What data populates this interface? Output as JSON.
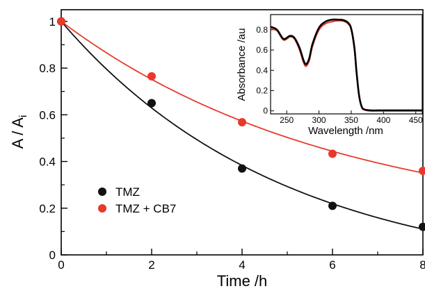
{
  "chart_data": [
    {
      "type": "scatter",
      "xlabel": "Time /h",
      "ylabel_main": "A / A",
      "ylabel_sub": "i",
      "xlim": [
        0,
        8
      ],
      "ylim": [
        0,
        1.05
      ],
      "xticks": [
        0,
        2,
        4,
        6,
        8
      ],
      "yticks": [
        0,
        0.2,
        0.4,
        0.6,
        0.8,
        1
      ],
      "xtick_labels": [
        "0",
        "2",
        "4",
        "6",
        "8"
      ],
      "ytick_labels": [
        "0",
        "0.2",
        "0.4",
        "0.6",
        "0.8",
        "1"
      ],
      "legend_position": "bottom-left",
      "series": [
        {
          "name": "TMZ",
          "color": "#111111",
          "x": [
            0,
            2,
            4,
            6,
            8
          ],
          "y": [
            1.0,
            0.65,
            0.37,
            0.21,
            0.12
          ],
          "fit": "exponential-decay"
        },
        {
          "name": "TMZ + CB7",
          "color": "#e8392b",
          "x": [
            0,
            2,
            4,
            6,
            8
          ],
          "y": [
            1.0,
            0.765,
            0.568,
            0.433,
            0.36
          ],
          "fit": "exponential-decay"
        }
      ]
    },
    {
      "type": "line",
      "position": "top-right inset",
      "xlabel": "Wavelength /nm",
      "ylabel": "Absorbance /au",
      "xlim": [
        225,
        460
      ],
      "ylim": [
        -0.03,
        0.95
      ],
      "xticks": [
        250,
        300,
        350,
        400,
        450
      ],
      "yticks": [
        0,
        0.2,
        0.4,
        0.6,
        0.8
      ],
      "xtick_labels": [
        "250",
        "300",
        "350",
        "400",
        "450"
      ],
      "ytick_labels": [
        "0",
        "0.2",
        "0.4",
        "0.6",
        "0.8"
      ],
      "series": [
        {
          "color": "#e8392b",
          "x": [
            225,
            235,
            245,
            255,
            262,
            270,
            276,
            280,
            285,
            290,
            300,
            310,
            320,
            330,
            338,
            345,
            350,
            355,
            358,
            362,
            366,
            370,
            380,
            400,
            430,
            460
          ],
          "y": [
            0.81,
            0.79,
            0.7,
            0.73,
            0.71,
            0.6,
            0.48,
            0.44,
            0.5,
            0.64,
            0.8,
            0.86,
            0.88,
            0.89,
            0.885,
            0.86,
            0.8,
            0.6,
            0.38,
            0.15,
            0.04,
            0.01,
            0.0,
            0.0,
            0.0,
            0.0
          ]
        },
        {
          "color": "#000000",
          "x": [
            225,
            235,
            245,
            255,
            262,
            270,
            276,
            280,
            285,
            290,
            300,
            310,
            320,
            330,
            338,
            345,
            350,
            355,
            358,
            362,
            366,
            370,
            380,
            400,
            430,
            460
          ],
          "y": [
            0.83,
            0.8,
            0.71,
            0.74,
            0.72,
            0.62,
            0.5,
            0.46,
            0.52,
            0.66,
            0.82,
            0.88,
            0.9,
            0.9,
            0.895,
            0.87,
            0.81,
            0.62,
            0.4,
            0.16,
            0.045,
            0.015,
            0.005,
            0.005,
            0.005,
            0.005
          ]
        }
      ]
    }
  ]
}
